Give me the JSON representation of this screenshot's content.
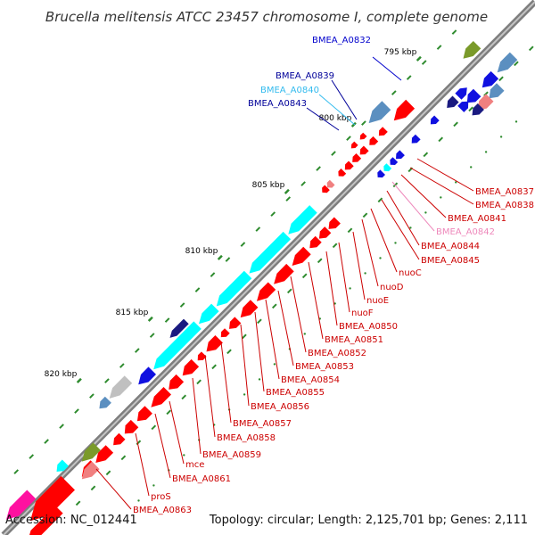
{
  "title": "Brucella melitensis ATCC 23457 chromosome I, complete genome",
  "footer": {
    "accession": "Accession: NC_012441",
    "topology": "Topology: circular; Length: 2,125,701 bp; Genes: 2,111"
  },
  "kbp_labels": [
    "795 kbp",
    "800 kbp",
    "805 kbp",
    "810 kbp",
    "815 kbp",
    "820 kbp"
  ],
  "colors": {
    "backbone": "#8a8a8a",
    "gene_red": "#ff0000",
    "gene_cyan": "#00ffff",
    "gene_blue": "#1010e0",
    "gene_navy": "#1a1a80",
    "gene_steel": "#5b8fc0",
    "gene_pink": "#f08080",
    "gene_magenta": "#ff10a0",
    "gene_olive": "#7a9a2a",
    "gene_grey": "#c0c0c0",
    "tick_green": "#2e8b2e",
    "label_red": "#cc0000",
    "label_blue": "#0000cc",
    "label_cyan": "#33bbee",
    "label_pink": "#ee88bb",
    "label_navy": "#000099"
  },
  "gene_labels": [
    {
      "text": "BMEA_A0832",
      "color": "label_blue"
    },
    {
      "text": "BMEA_A0839",
      "color": "label_navy"
    },
    {
      "text": "BMEA_A0840",
      "color": "label_cyan"
    },
    {
      "text": "BMEA_A0843",
      "color": "label_navy"
    },
    {
      "text": "BMEA_A0837",
      "color": "label_red"
    },
    {
      "text": "BMEA_A0838",
      "color": "label_red"
    },
    {
      "text": "BMEA_A0841",
      "color": "label_red"
    },
    {
      "text": "BMEA_A0842",
      "color": "label_pink"
    },
    {
      "text": "BMEA_A0844",
      "color": "label_red"
    },
    {
      "text": "BMEA_A0845",
      "color": "label_red"
    },
    {
      "text": "nuoC",
      "color": "label_red"
    },
    {
      "text": "nuoD",
      "color": "label_red"
    },
    {
      "text": "nuoE",
      "color": "label_red"
    },
    {
      "text": "nuoF",
      "color": "label_red"
    },
    {
      "text": "BMEA_A0850",
      "color": "label_red"
    },
    {
      "text": "BMEA_A0851",
      "color": "label_red"
    },
    {
      "text": "BMEA_A0852",
      "color": "label_red"
    },
    {
      "text": "BMEA_A0853",
      "color": "label_red"
    },
    {
      "text": "BMEA_A0854",
      "color": "label_red"
    },
    {
      "text": "BMEA_A0855",
      "color": "label_red"
    },
    {
      "text": "BMEA_A0856",
      "color": "label_red"
    },
    {
      "text": "BMEA_A0857",
      "color": "label_red"
    },
    {
      "text": "BMEA_A0858",
      "color": "label_red"
    },
    {
      "text": "BMEA_A0859",
      "color": "label_red"
    },
    {
      "text": "mce",
      "color": "label_red"
    },
    {
      "text": "BMEA_A0861",
      "color": "label_red"
    },
    {
      "text": "proS",
      "color": "label_red"
    },
    {
      "text": "BMEA_A0863",
      "color": "label_red"
    }
  ]
}
